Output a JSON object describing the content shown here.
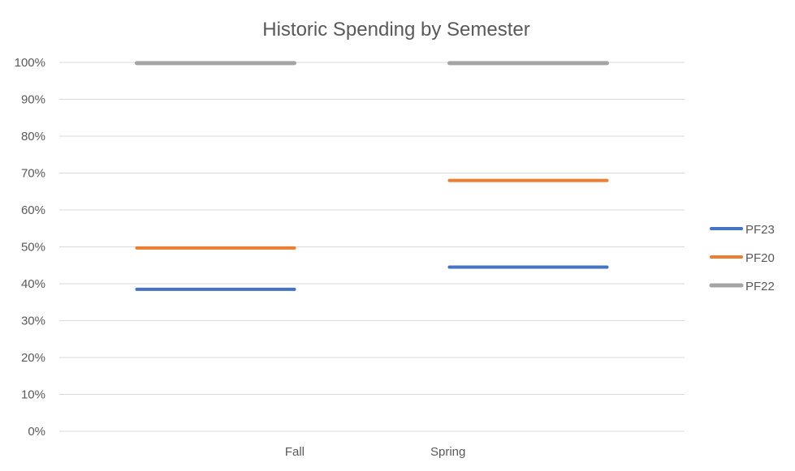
{
  "chart_data": {
    "type": "line",
    "title": "Historic Spending by Semester",
    "xlabel": "",
    "ylabel": "",
    "categories": [
      "Fall",
      "Spring"
    ],
    "ylim": [
      0,
      1
    ],
    "yticks": [
      "0%",
      "10%",
      "20%",
      "30%",
      "40%",
      "50%",
      "60%",
      "70%",
      "80%",
      "90%",
      "100%"
    ],
    "grid": true,
    "legend_position": "right",
    "series": [
      {
        "name": "PF23",
        "color": "#4472C4",
        "values": [
          0.385,
          0.445
        ]
      },
      {
        "name": "PF20",
        "color": "#ED7D31",
        "values": [
          0.497,
          0.68
        ]
      },
      {
        "name": "PF22",
        "color": "#A5A5A5",
        "values": [
          0.998,
          0.998
        ]
      }
    ]
  }
}
